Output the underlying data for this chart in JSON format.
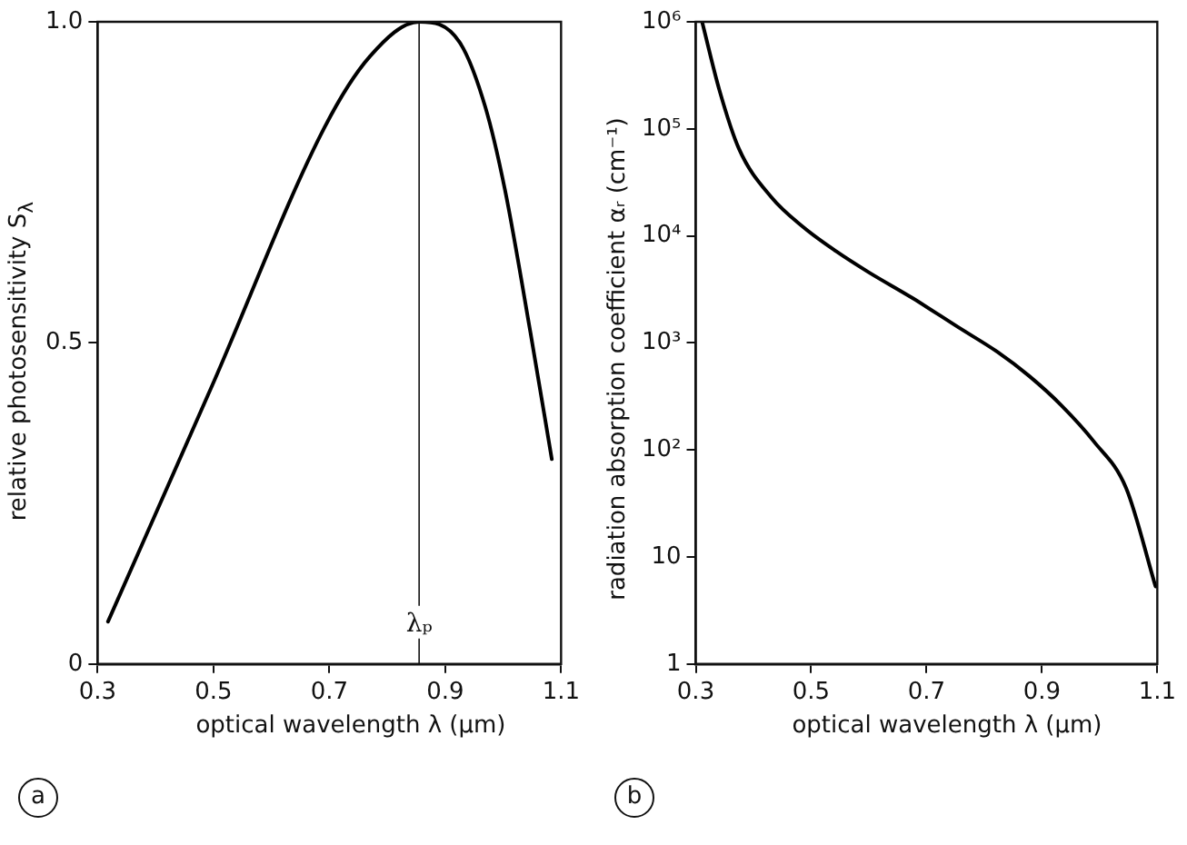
{
  "chart_data": [
    {
      "type": "line",
      "xlabel": "optical wavelength λ (μm)",
      "ylabel": "relative photosensitivity S$_{λ}$",
      "annotations": [
        "a"
      ],
      "x": [
        0.318,
        0.498,
        0.692,
        0.77,
        0.855,
        0.925,
        0.969,
        1.003,
        1.047,
        1.084
      ],
      "series": [
        {
          "color": "#000000",
          "values": [
            0.066,
            0.434,
            0.836,
            0.946,
            1.0,
            0.968,
            0.868,
            0.739,
            0.517,
            0.319
          ]
        }
      ],
      "xlim": [
        0.3,
        1.1
      ],
      "xticks": [
        0.3,
        0.5,
        0.7,
        0.9,
        1.1
      ],
      "ylim": [
        0,
        1
      ],
      "yticks": [
        0,
        0.5,
        {
          "value": 1,
          "label": "1.0"
        }
      ],
      "ref_lines": [
        {
          "axis": "x",
          "value": 0.855,
          "label": "λₚ"
        }
      ],
      "grid": false,
      "legend": false,
      "marker": "none",
      "line_style": "solid"
    },
    {
      "type": "line",
      "xlabel": "optical wavelength λ (μm)",
      "ylabel": "radiation absorption coefficient αᵣ (cm⁻¹)",
      "annotations": [
        "b"
      ],
      "x": [
        0.311,
        0.341,
        0.375,
        0.431,
        0.487,
        0.543,
        0.599,
        0.677,
        0.755,
        0.822,
        0.878,
        0.934,
        0.99,
        1.046,
        1.097
      ],
      "series": [
        {
          "color": "#000000",
          "values": [
            1000000,
            230000,
            65000,
            23000,
            12000,
            7200,
            4600,
            2600,
            1400,
            830,
            490,
            260,
            120,
            44,
            5.3
          ]
        }
      ],
      "xlim": [
        0.3,
        1.1
      ],
      "xticks": [
        0.3,
        0.5,
        0.7,
        0.9,
        1.1
      ],
      "ylim": [
        1,
        1000000
      ],
      "yticks": [
        1,
        10,
        {
          "value": 100,
          "label": "10²"
        },
        {
          "value": 1000,
          "label": "10³"
        },
        {
          "value": 10000,
          "label": "10⁴"
        },
        {
          "value": 100000,
          "label": "10⁵"
        },
        {
          "value": 1000000,
          "label": "10⁶"
        }
      ],
      "log": "y",
      "grid": false,
      "legend": false,
      "marker": "none",
      "line_style": "solid"
    }
  ]
}
